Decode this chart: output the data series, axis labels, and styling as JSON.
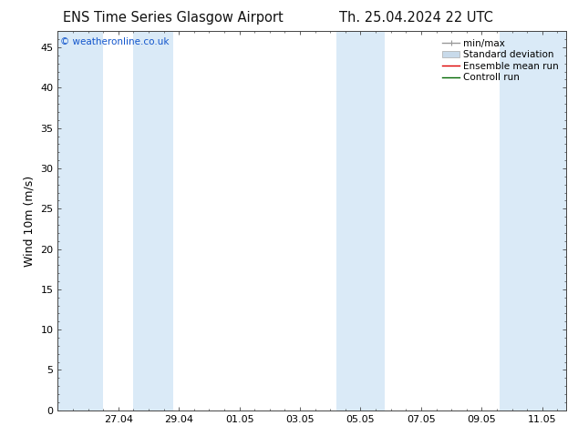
{
  "title_left": "ENS Time Series Glasgow Airport",
  "title_right": "Th. 25.04.2024 22 UTC",
  "ylabel": "Wind 10m (m/s)",
  "copyright_text": "© weatheronline.co.uk",
  "ylim": [
    0,
    47
  ],
  "yticks": [
    0,
    5,
    10,
    15,
    20,
    25,
    30,
    35,
    40,
    45
  ],
  "xtick_labels": [
    "27.04",
    "29.04",
    "01.05",
    "03.05",
    "05.05",
    "07.05",
    "09.05",
    "11.05"
  ],
  "xtick_positions": [
    2,
    4,
    6,
    8,
    10,
    12,
    14,
    16
  ],
  "x_min": 0,
  "x_max": 16.8,
  "shade_bands": [
    [
      0.0,
      1.5
    ],
    [
      2.5,
      3.8
    ],
    [
      9.2,
      10.8
    ],
    [
      14.6,
      16.8
    ]
  ],
  "shade_color": "#daeaf7",
  "bg_color": "#ffffff",
  "border_color": "#444444",
  "font_family": "DejaVu Sans",
  "title_fontsize": 10.5,
  "axis_label_fontsize": 9,
  "tick_fontsize": 8,
  "copyright_fontsize": 7.5,
  "legend_fontsize": 7.5,
  "copyright_color": "#1155cc",
  "minmax_color": "#999999",
  "std_color": "#c8daea",
  "ens_color": "#dd0000",
  "ctrl_color": "#006600"
}
